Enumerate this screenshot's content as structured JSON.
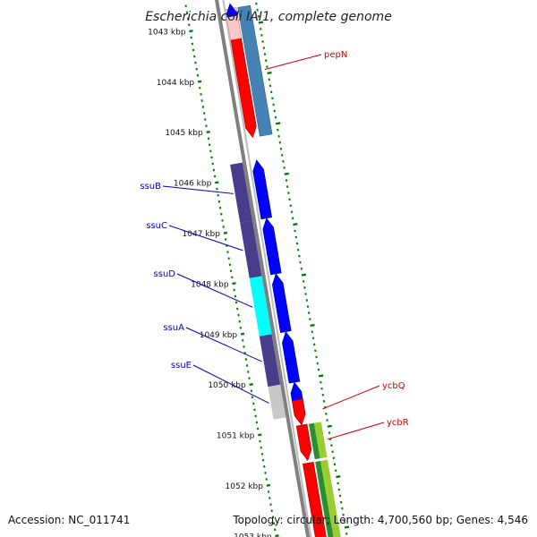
{
  "title": "Escherichia coli IAI1, complete genome",
  "ticks": [
    {
      "label": "1043 kbp",
      "pos": 1043
    },
    {
      "label": "1044 kbp",
      "pos": 1044
    },
    {
      "label": "1045 kbp",
      "pos": 1045
    },
    {
      "label": "1046 kbp",
      "pos": 1046
    },
    {
      "label": "1047 kbp",
      "pos": 1047
    },
    {
      "label": "1048 kbp",
      "pos": 1048
    },
    {
      "label": "1049 kbp",
      "pos": 1049
    },
    {
      "label": "1050 kbp",
      "pos": 1050
    },
    {
      "label": "1051 kbp",
      "pos": 1051
    },
    {
      "label": "1052 kbp",
      "pos": 1052
    },
    {
      "label": "1053 kbp",
      "pos": 1053
    }
  ],
  "genes": [
    {
      "name": "pepN",
      "start": 1042.7,
      "end": 1045.25,
      "strand": "+",
      "labeled": true
    },
    {
      "name": "ssuB",
      "start": 1045.7,
      "end": 1046.85,
      "strand": "-",
      "labeled": true
    },
    {
      "name": "ssuC",
      "start": 1046.85,
      "end": 1047.95,
      "strand": "-",
      "labeled": true
    },
    {
      "name": "ssuD",
      "start": 1047.95,
      "end": 1049.1,
      "strand": "-",
      "labeled": true
    },
    {
      "name": "ssuA",
      "start": 1049.1,
      "end": 1050.1,
      "strand": "-",
      "labeled": true
    },
    {
      "name": "ssuE",
      "start": 1050.1,
      "end": 1050.75,
      "strand": "-",
      "labeled": true
    },
    {
      "name": "ycbQ",
      "start": 1050.45,
      "end": 1050.95,
      "strand": "+",
      "labeled": true
    },
    {
      "name": "ycbR",
      "start": 1050.95,
      "end": 1051.65,
      "strand": "+",
      "labeled": true
    },
    {
      "name": "",
      "start": 1051.7,
      "end": 1053.4,
      "strand": "+",
      "labeled": false
    },
    {
      "name": "",
      "start": 1042.6,
      "end": 1042.85,
      "strand": "-",
      "labeled": false
    }
  ],
  "colors": {
    "backbone": "#808080",
    "plus_cds": "#ff0000",
    "minus_cds": "#0000ff",
    "plus_label": "#d00000",
    "minus_label": "#0000b4",
    "tick": "#008000",
    "plus_cog": "#4682b4",
    "cog_green": "#2e8b2e",
    "cog_lime": "#9acd32"
  },
  "footer": {
    "accession": "Accession: NC_011741",
    "genome_info": "Topology: circular; Length: 4,700,560 bp; Genes: 4,546"
  }
}
